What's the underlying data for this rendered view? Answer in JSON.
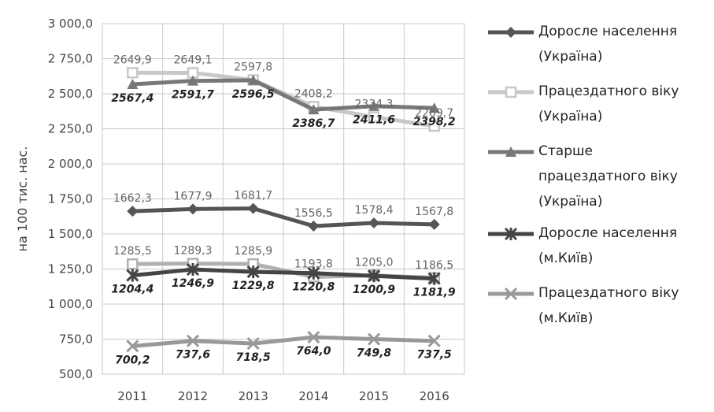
{
  "chart_data": {
    "type": "line",
    "categories": [
      "2011",
      "2012",
      "2013",
      "2014",
      "2015",
      "2016"
    ],
    "ylabel": "на 100 тис. нас.",
    "ylim": [
      500,
      3000
    ],
    "y_ticks": [
      "500,0",
      "750,0",
      "1 000,0",
      "1 250,0",
      "1 500,0",
      "1 750,0",
      "2 000,0",
      "2 250,0",
      "2 500,0",
      "2 750,0",
      "3 000,0"
    ],
    "grid": true,
    "legend_position": "right",
    "series": [
      {
        "name": "Доросле населення (Україна)",
        "marker": "diamond",
        "color": "#555555",
        "label_style": "normal",
        "label_pos": "above",
        "values": [
          1662.3,
          1677.9,
          1681.7,
          1556.5,
          1578.4,
          1567.8
        ],
        "labels": [
          "1662,3",
          "1677,9",
          "1681,7",
          "1556,5",
          "1578,4",
          "1567,8"
        ]
      },
      {
        "name": "Працездатного віку (Україна)",
        "marker": "square-open",
        "color": "#c8c8c8",
        "label_style": "normal",
        "label_pos": "above",
        "values": [
          2649.9,
          2649.1,
          2597.8,
          2408.2,
          2334.3,
          2269.7
        ],
        "labels": [
          "2649,9",
          "2649,1",
          "2597,8",
          "2408,2",
          "2334,3",
          "2269,7"
        ]
      },
      {
        "name": "Старше працездатного віку (Україна)",
        "marker": "triangle",
        "color": "#777777",
        "label_style": "bold",
        "label_pos": "below",
        "values": [
          2567.4,
          2591.7,
          2596.5,
          2386.7,
          2411.6,
          2398.2
        ],
        "labels": [
          "2567,4",
          "2591,7",
          "2596,5",
          "2386,7",
          "2411,6",
          "2398,2"
        ]
      },
      {
        "name": "Доросле населення (м.Київ)",
        "marker": "star",
        "color": "#444444",
        "label_style": "bold",
        "label_pos": "below",
        "values": [
          1204.4,
          1246.9,
          1229.8,
          1220.8,
          1200.9,
          1181.9
        ],
        "labels": [
          "1204,4",
          "1246,9",
          "1229,8",
          "1220,8",
          "1200,9",
          "1181,9"
        ]
      },
      {
        "name": "Працездатного віку (м.Київ)",
        "marker": "x",
        "color": "#999999",
        "label_style": "bold",
        "label_pos": "below",
        "values": [
          700.2,
          737.6,
          718.5,
          764.0,
          749.8,
          737.5
        ],
        "labels": [
          "700,2",
          "737,6",
          "718,5",
          "764,0",
          "749,8",
          "737,5"
        ]
      },
      {
        "name": "Працездатного віку (м.Київ) (2)",
        "marker": "square-open",
        "color": "#b0b0b0",
        "label_style": "normal",
        "label_pos": "above",
        "values": [
          1285.5,
          1289.3,
          1285.9,
          1193.8,
          1205.0,
          1186.5
        ],
        "labels": [
          "1285,5",
          "1289,3",
          "1285,9",
          "1193,8",
          "1205,0",
          "1186,5"
        ],
        "in_legend": false
      }
    ]
  },
  "legend": {
    "items": [
      {
        "label": "Доросле населення\n(Україна)",
        "series": 0
      },
      {
        "label": "Працездатного віку\n(Україна)",
        "series": 1
      },
      {
        "label": "Старше\nпрацездатного віку\n(Україна)",
        "series": 2
      },
      {
        "label": "Доросле населення\n(м.Київ)",
        "series": 3
      },
      {
        "label": "Працездатного віку\n(м.Київ)",
        "series": 4
      }
    ]
  }
}
